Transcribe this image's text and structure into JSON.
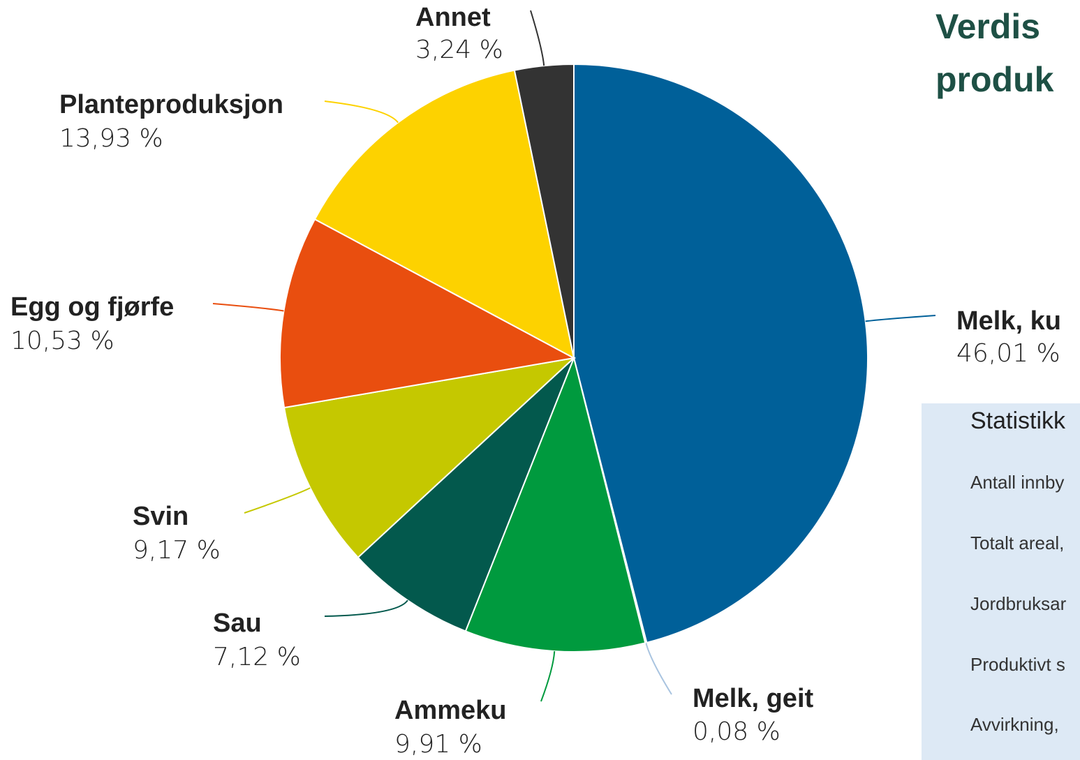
{
  "chart_data": {
    "type": "pie",
    "title_lines": [
      "Verdis",
      "produk"
    ],
    "categories": [
      "Melk, ku",
      "Melk, geit",
      "Ammeku",
      "Sau",
      "Svin",
      "Egg og fjørfe",
      "Planteproduksjon",
      "Annet"
    ],
    "values": [
      46.01,
      0.08,
      9.91,
      7.12,
      9.17,
      10.53,
      13.93,
      3.24
    ],
    "value_labels": [
      "46,01 %",
      "0,08 %",
      "9,91 %",
      "7,12 %",
      "9,17 %",
      "10,53 %",
      "13,93 %",
      "3,24 %"
    ],
    "colors": [
      "#006099",
      "#dfe8f3",
      "#009a3e",
      "#03594d",
      "#c5c800",
      "#e94e0f",
      "#fdd200",
      "#333333"
    ]
  },
  "sidebar": {
    "title": "Statistikk",
    "rows": [
      "Antall innby",
      "Totalt areal,",
      "Jordbruksar",
      "Produktivt s",
      "Avvirkning,"
    ]
  }
}
